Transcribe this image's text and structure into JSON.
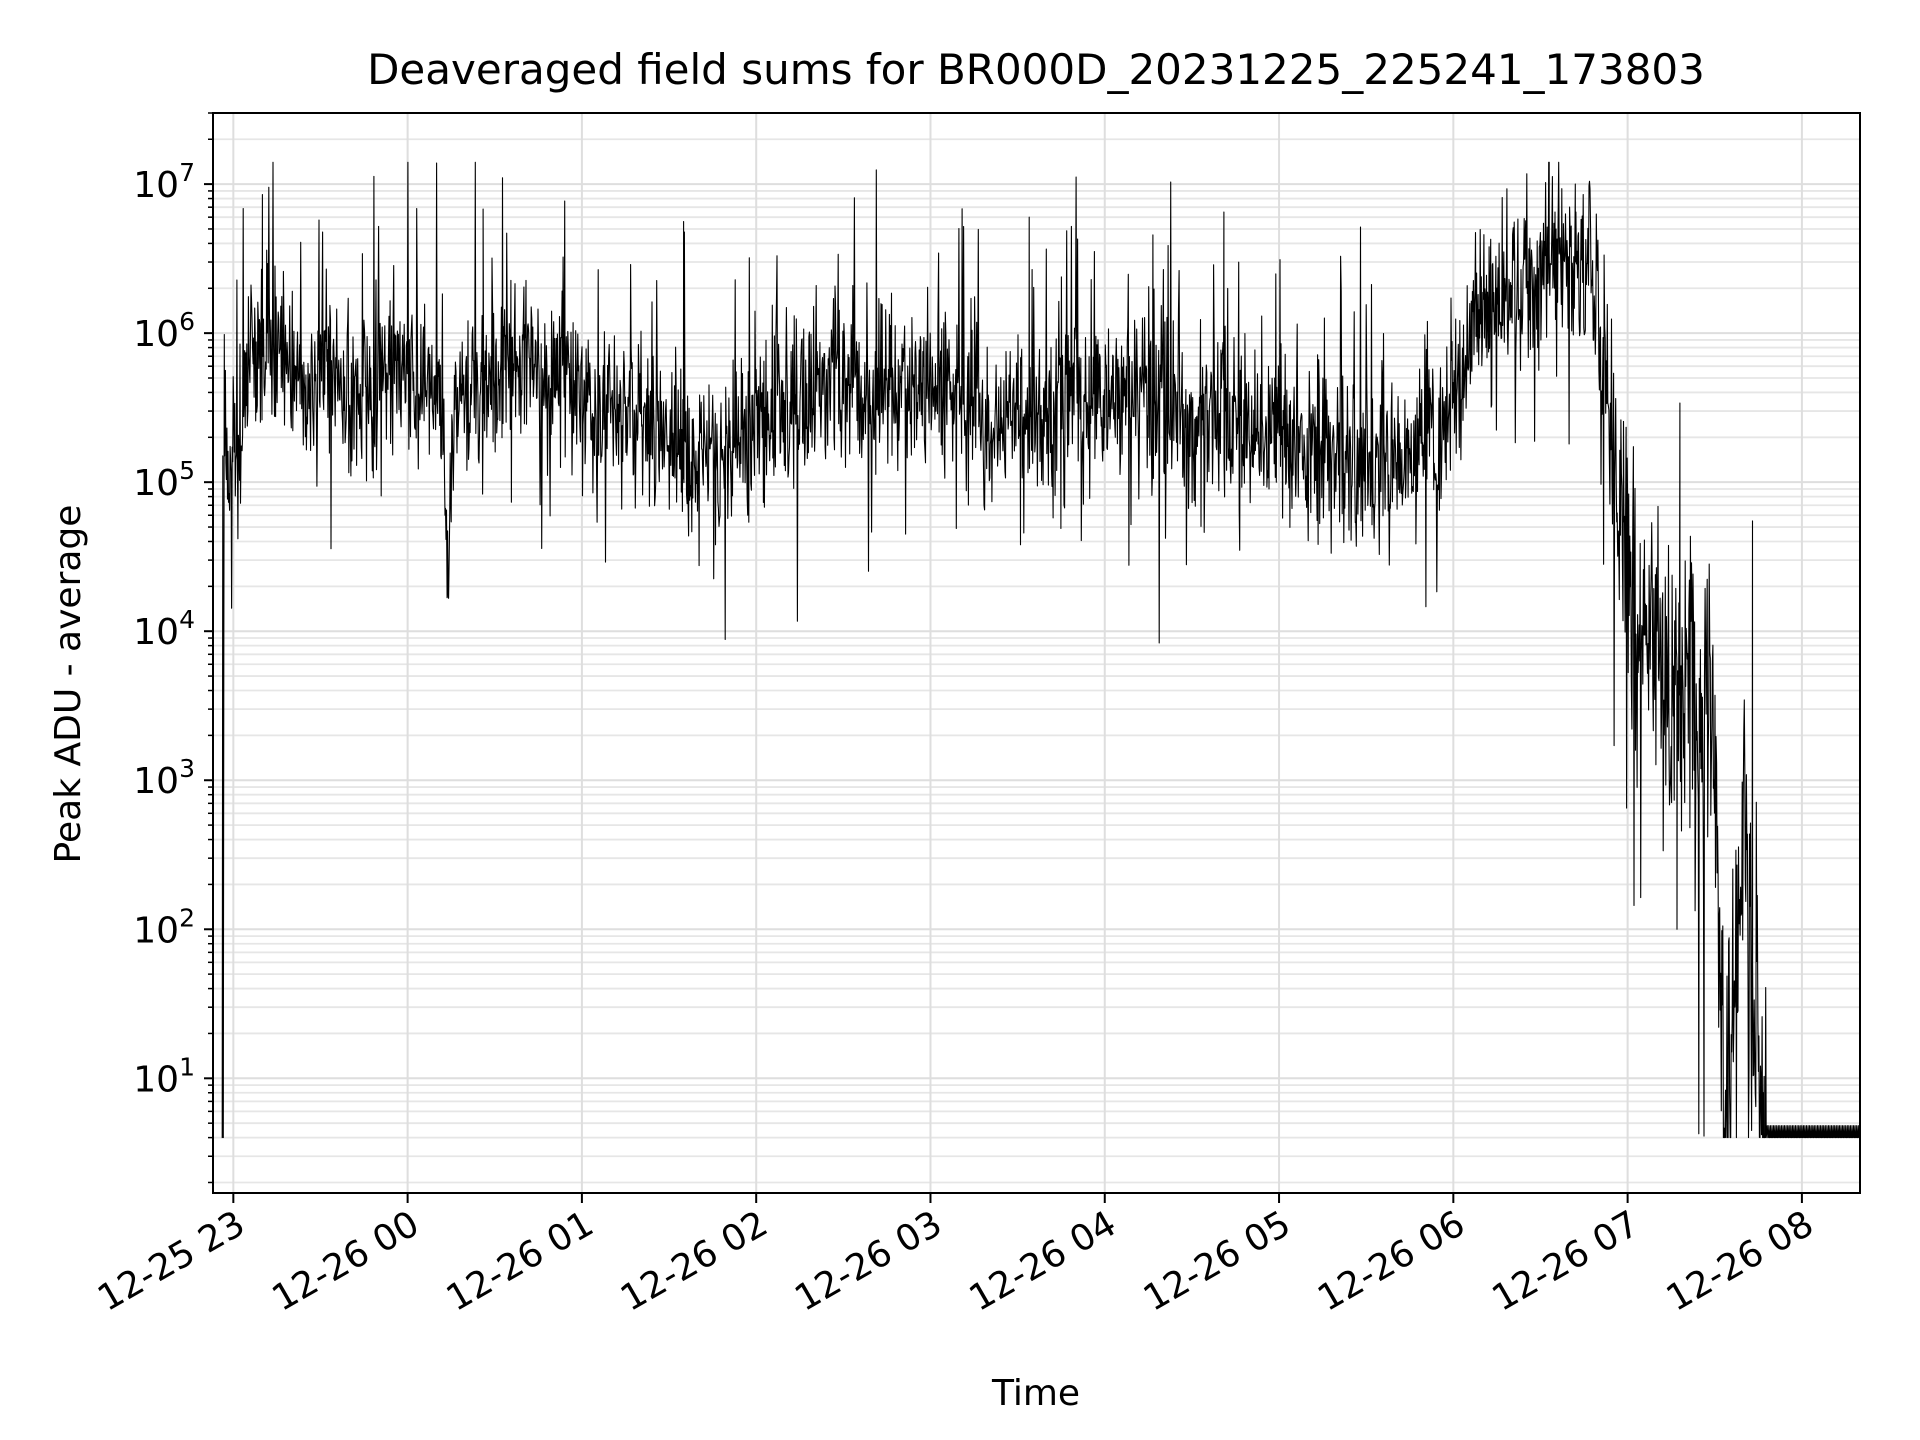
{
  "chart_data": {
    "type": "line",
    "title": "Deaveraged field sums for BR000D_20231225_225241_173803",
    "xlabel": "Time",
    "ylabel": "Peak ADU - average",
    "y_scale": "log",
    "ylim": [
      1.7,
      30000000
    ],
    "xlim": [
      "2023-12-25 22:53",
      "2023-12-26 08:20"
    ],
    "grid": "major and minor, both axes",
    "line_color": "#000000",
    "x_ticks": [
      {
        "value": "2023-12-25 23:00",
        "label": "12-25 23"
      },
      {
        "value": "2023-12-26 00:00",
        "label": "12-26 00"
      },
      {
        "value": "2023-12-26 01:00",
        "label": "12-26 01"
      },
      {
        "value": "2023-12-26 02:00",
        "label": "12-26 02"
      },
      {
        "value": "2023-12-26 03:00",
        "label": "12-26 03"
      },
      {
        "value": "2023-12-26 04:00",
        "label": "12-26 04"
      },
      {
        "value": "2023-12-26 05:00",
        "label": "12-26 05"
      },
      {
        "value": "2023-12-26 06:00",
        "label": "12-26 06"
      },
      {
        "value": "2023-12-26 07:00",
        "label": "12-26 07"
      },
      {
        "value": "2023-12-26 08:00",
        "label": "12-26 08"
      }
    ],
    "y_ticks": [
      {
        "value": 10,
        "base": "10",
        "exp": "1"
      },
      {
        "value": 100,
        "base": "10",
        "exp": "2"
      },
      {
        "value": 1000,
        "base": "10",
        "exp": "3"
      },
      {
        "value": 10000,
        "base": "10",
        "exp": "4"
      },
      {
        "value": 100000,
        "base": "10",
        "exp": "5"
      },
      {
        "value": 1000000,
        "base": "10",
        "exp": "6"
      },
      {
        "value": 10000000,
        "base": "10",
        "exp": "7"
      }
    ],
    "series_envelope": [
      {
        "t": "2023-12-25 22:56",
        "v": 4
      },
      {
        "t": "2023-12-25 22:57",
        "v": 150000
      },
      {
        "t": "2023-12-25 23:02",
        "v": 200000
      },
      {
        "t": "2023-12-25 23:05",
        "v": 600000
      },
      {
        "t": "2023-12-25 23:10",
        "v": 800000
      },
      {
        "t": "2023-12-25 23:20",
        "v": 500000
      },
      {
        "t": "2023-12-25 23:40",
        "v": 400000
      },
      {
        "t": "2023-12-26 00:00",
        "v": 500000
      },
      {
        "t": "2023-12-26 00:12",
        "v": 400000
      },
      {
        "t": "2023-12-26 00:14",
        "v": 17000
      },
      {
        "t": "2023-12-26 00:16",
        "v": 400000
      },
      {
        "t": "2023-12-26 00:40",
        "v": 600000
      },
      {
        "t": "2023-12-26 01:10",
        "v": 300000
      },
      {
        "t": "2023-12-26 01:40",
        "v": 150000
      },
      {
        "t": "2023-12-26 02:10",
        "v": 300000
      },
      {
        "t": "2023-12-26 02:30",
        "v": 500000
      },
      {
        "t": "2023-12-26 03:00",
        "v": 400000
      },
      {
        "t": "2023-12-26 03:30",
        "v": 250000
      },
      {
        "t": "2023-12-26 04:00",
        "v": 400000
      },
      {
        "t": "2023-12-26 04:30",
        "v": 250000
      },
      {
        "t": "2023-12-26 05:00",
        "v": 200000
      },
      {
        "t": "2023-12-26 05:30",
        "v": 120000
      },
      {
        "t": "2023-12-26 05:50",
        "v": 150000
      },
      {
        "t": "2023-12-26 06:00",
        "v": 300000
      },
      {
        "t": "2023-12-26 06:10",
        "v": 1500000
      },
      {
        "t": "2023-12-26 06:30",
        "v": 2500000
      },
      {
        "t": "2023-12-26 06:48",
        "v": 3000000
      },
      {
        "t": "2023-12-26 06:52",
        "v": 400000
      },
      {
        "t": "2023-12-26 06:58",
        "v": 50000
      },
      {
        "t": "2023-12-26 07:05",
        "v": 10000
      },
      {
        "t": "2023-12-26 07:15",
        "v": 5000
      },
      {
        "t": "2023-12-26 07:25",
        "v": 3000
      },
      {
        "t": "2023-12-26 07:30",
        "v": 4000
      },
      {
        "t": "2023-12-26 07:33",
        "v": 4
      },
      {
        "t": "2023-12-26 07:40",
        "v": 500
      },
      {
        "t": "2023-12-26 07:47",
        "v": 4
      },
      {
        "t": "2023-12-26 08:20",
        "v": 4
      }
    ],
    "notable_peaks": [
      {
        "t": "2023-12-25 22:57",
        "v": 150000
      },
      {
        "t": "2023-12-25 23:10",
        "v": 8500000
      },
      {
        "t": "2023-12-26 00:26",
        "v": 6800000
      },
      {
        "t": "2023-12-26 01:35",
        "v": 5600000
      },
      {
        "t": "2023-12-26 03:34",
        "v": 6000000
      },
      {
        "t": "2023-12-26 04:41",
        "v": 6500000
      },
      {
        "t": "2023-12-26 06:33",
        "v": 14000000
      },
      {
        "t": "2023-12-26 06:42",
        "v": 10000000
      },
      {
        "t": "2023-12-26 07:18",
        "v": 340000
      },
      {
        "t": "2023-12-26 07:43",
        "v": 55000
      }
    ],
    "notable_dips": [
      {
        "t": "2023-12-25 22:56",
        "v": 4
      },
      {
        "t": "2023-12-26 00:14",
        "v": 17000
      },
      {
        "t": "2023-12-26 01:46",
        "v": 38000
      },
      {
        "t": "2023-12-26 03:31",
        "v": 38000
      },
      {
        "t": "2023-12-26 07:17",
        "v": 100
      },
      {
        "t": "2023-12-26 07:33",
        "v": 4
      },
      {
        "t": "2023-12-26 07:47",
        "v": 4
      }
    ]
  }
}
